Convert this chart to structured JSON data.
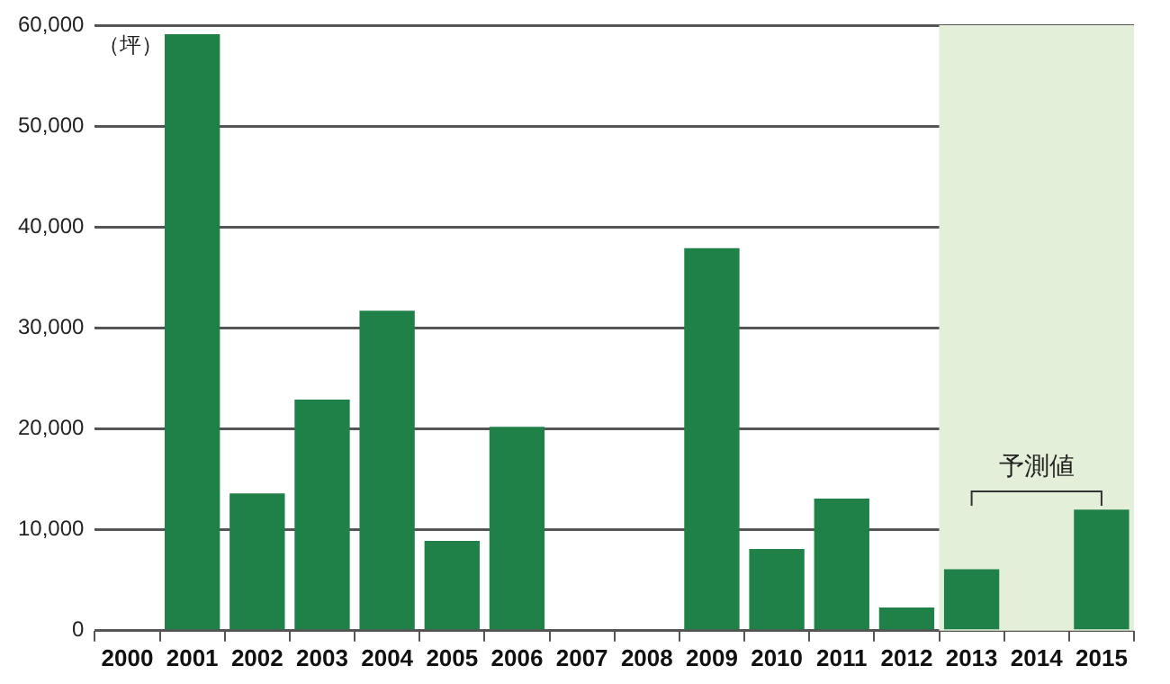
{
  "chart_data": {
    "type": "bar",
    "ylabel": "（坪）",
    "categories": [
      "2000",
      "2001",
      "2002",
      "2003",
      "2004",
      "2005",
      "2006",
      "2007",
      "2008",
      "2009",
      "2010",
      "2011",
      "2012",
      "2013",
      "2014",
      "2015"
    ],
    "values": [
      null,
      59100,
      13600,
      22900,
      31700,
      8900,
      20200,
      null,
      null,
      37900,
      8100,
      13100,
      2300,
      6100,
      null,
      12000
    ],
    "color": "#1f8048",
    "ylim": [
      0,
      60000
    ],
    "yticks": [
      0,
      {
        "value": 10000,
        "label": "10,000"
      },
      {
        "value": 20000,
        "label": "20,000"
      },
      {
        "value": 30000,
        "label": "30,000"
      },
      {
        "value": 40000,
        "label": "40,000"
      },
      {
        "value": 50000,
        "label": "50,000"
      },
      {
        "value": 60000,
        "label": "60,000"
      }
    ],
    "grid": "y",
    "legend": false,
    "bands": [
      {
        "axis": "x",
        "from": "2013",
        "to": "2015",
        "color": "#e4efd9"
      }
    ],
    "annotations": [
      "予測値"
    ]
  }
}
